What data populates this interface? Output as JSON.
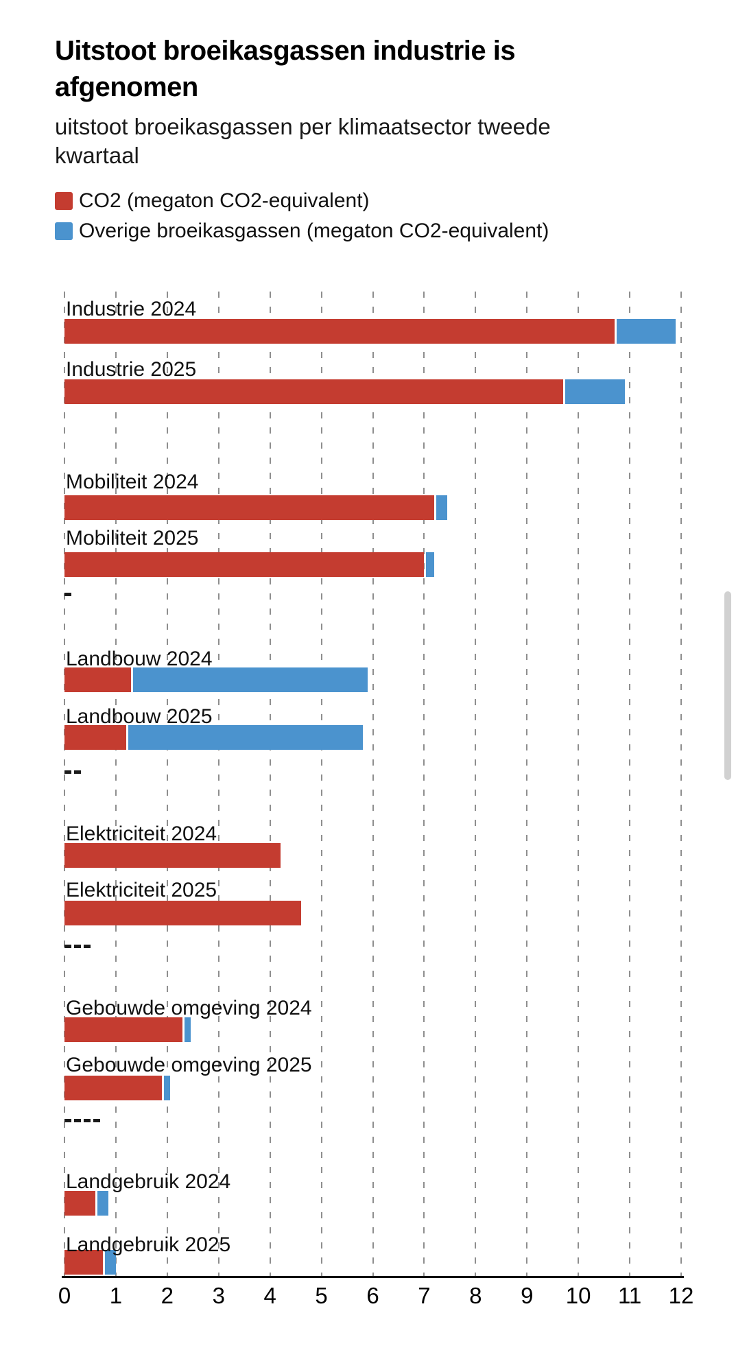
{
  "header": {
    "title": "Uitstoot broeikasgassen industrie is afgenomen",
    "subtitle": "uitstoot broeikasgassen per klimaatsector tweede kwartaal"
  },
  "legend": [
    {
      "label": "CO2 (megaton CO2-equivalent)",
      "color": "#c43c30"
    },
    {
      "label": "Overige broeikasgassen (megaton CO2-equivalent)",
      "color": "#4b93ce"
    }
  ],
  "chart_data": {
    "type": "bar",
    "orientation": "horizontal",
    "stacked": true,
    "title": "Uitstoot broeikasgassen industrie is afgenomen",
    "xlabel": "",
    "ylabel": "",
    "xlim": [
      0,
      12
    ],
    "xticks": [
      0,
      1,
      2,
      3,
      4,
      5,
      6,
      7,
      8,
      9,
      10,
      11,
      12
    ],
    "grid": "dashed-vertical",
    "legend_position": "top-left",
    "categories": [
      "Industrie 2024",
      "Industrie 2025",
      "Mobiliteit 2024",
      "Mobiliteit 2025",
      "Landbouw 2024",
      "Landbouw 2025",
      "Elektriciteit 2024",
      "Elektriciteit 2025",
      "Gebouwde omgeving 2024",
      "Gebouwde omgeving 2025",
      "Landgebruik 2024",
      "Landgebruik 2025"
    ],
    "series": [
      {
        "name": "CO2 (megaton CO2-equivalent)",
        "color": "#c43c30",
        "values": [
          10.7,
          9.7,
          7.2,
          7.0,
          1.3,
          1.2,
          4.2,
          4.6,
          2.3,
          1.9,
          0.6,
          0.75
        ]
      },
      {
        "name": "Overige broeikasgassen (megaton CO2-equivalent)",
        "color": "#4b93ce",
        "values": [
          1.2,
          1.2,
          0.25,
          0.2,
          4.6,
          4.6,
          0,
          0,
          0.15,
          0.15,
          0.25,
          0.25
        ]
      }
    ],
    "separators_after_row": {
      "3": "-",
      "5": "--",
      "7": "---",
      "9": "----"
    }
  },
  "colors": {
    "co2": "#c43c30",
    "other": "#4b93ce",
    "gridline": "#8e8e8e",
    "axis": "#111111",
    "scrollbar": "#d1d1d1"
  }
}
